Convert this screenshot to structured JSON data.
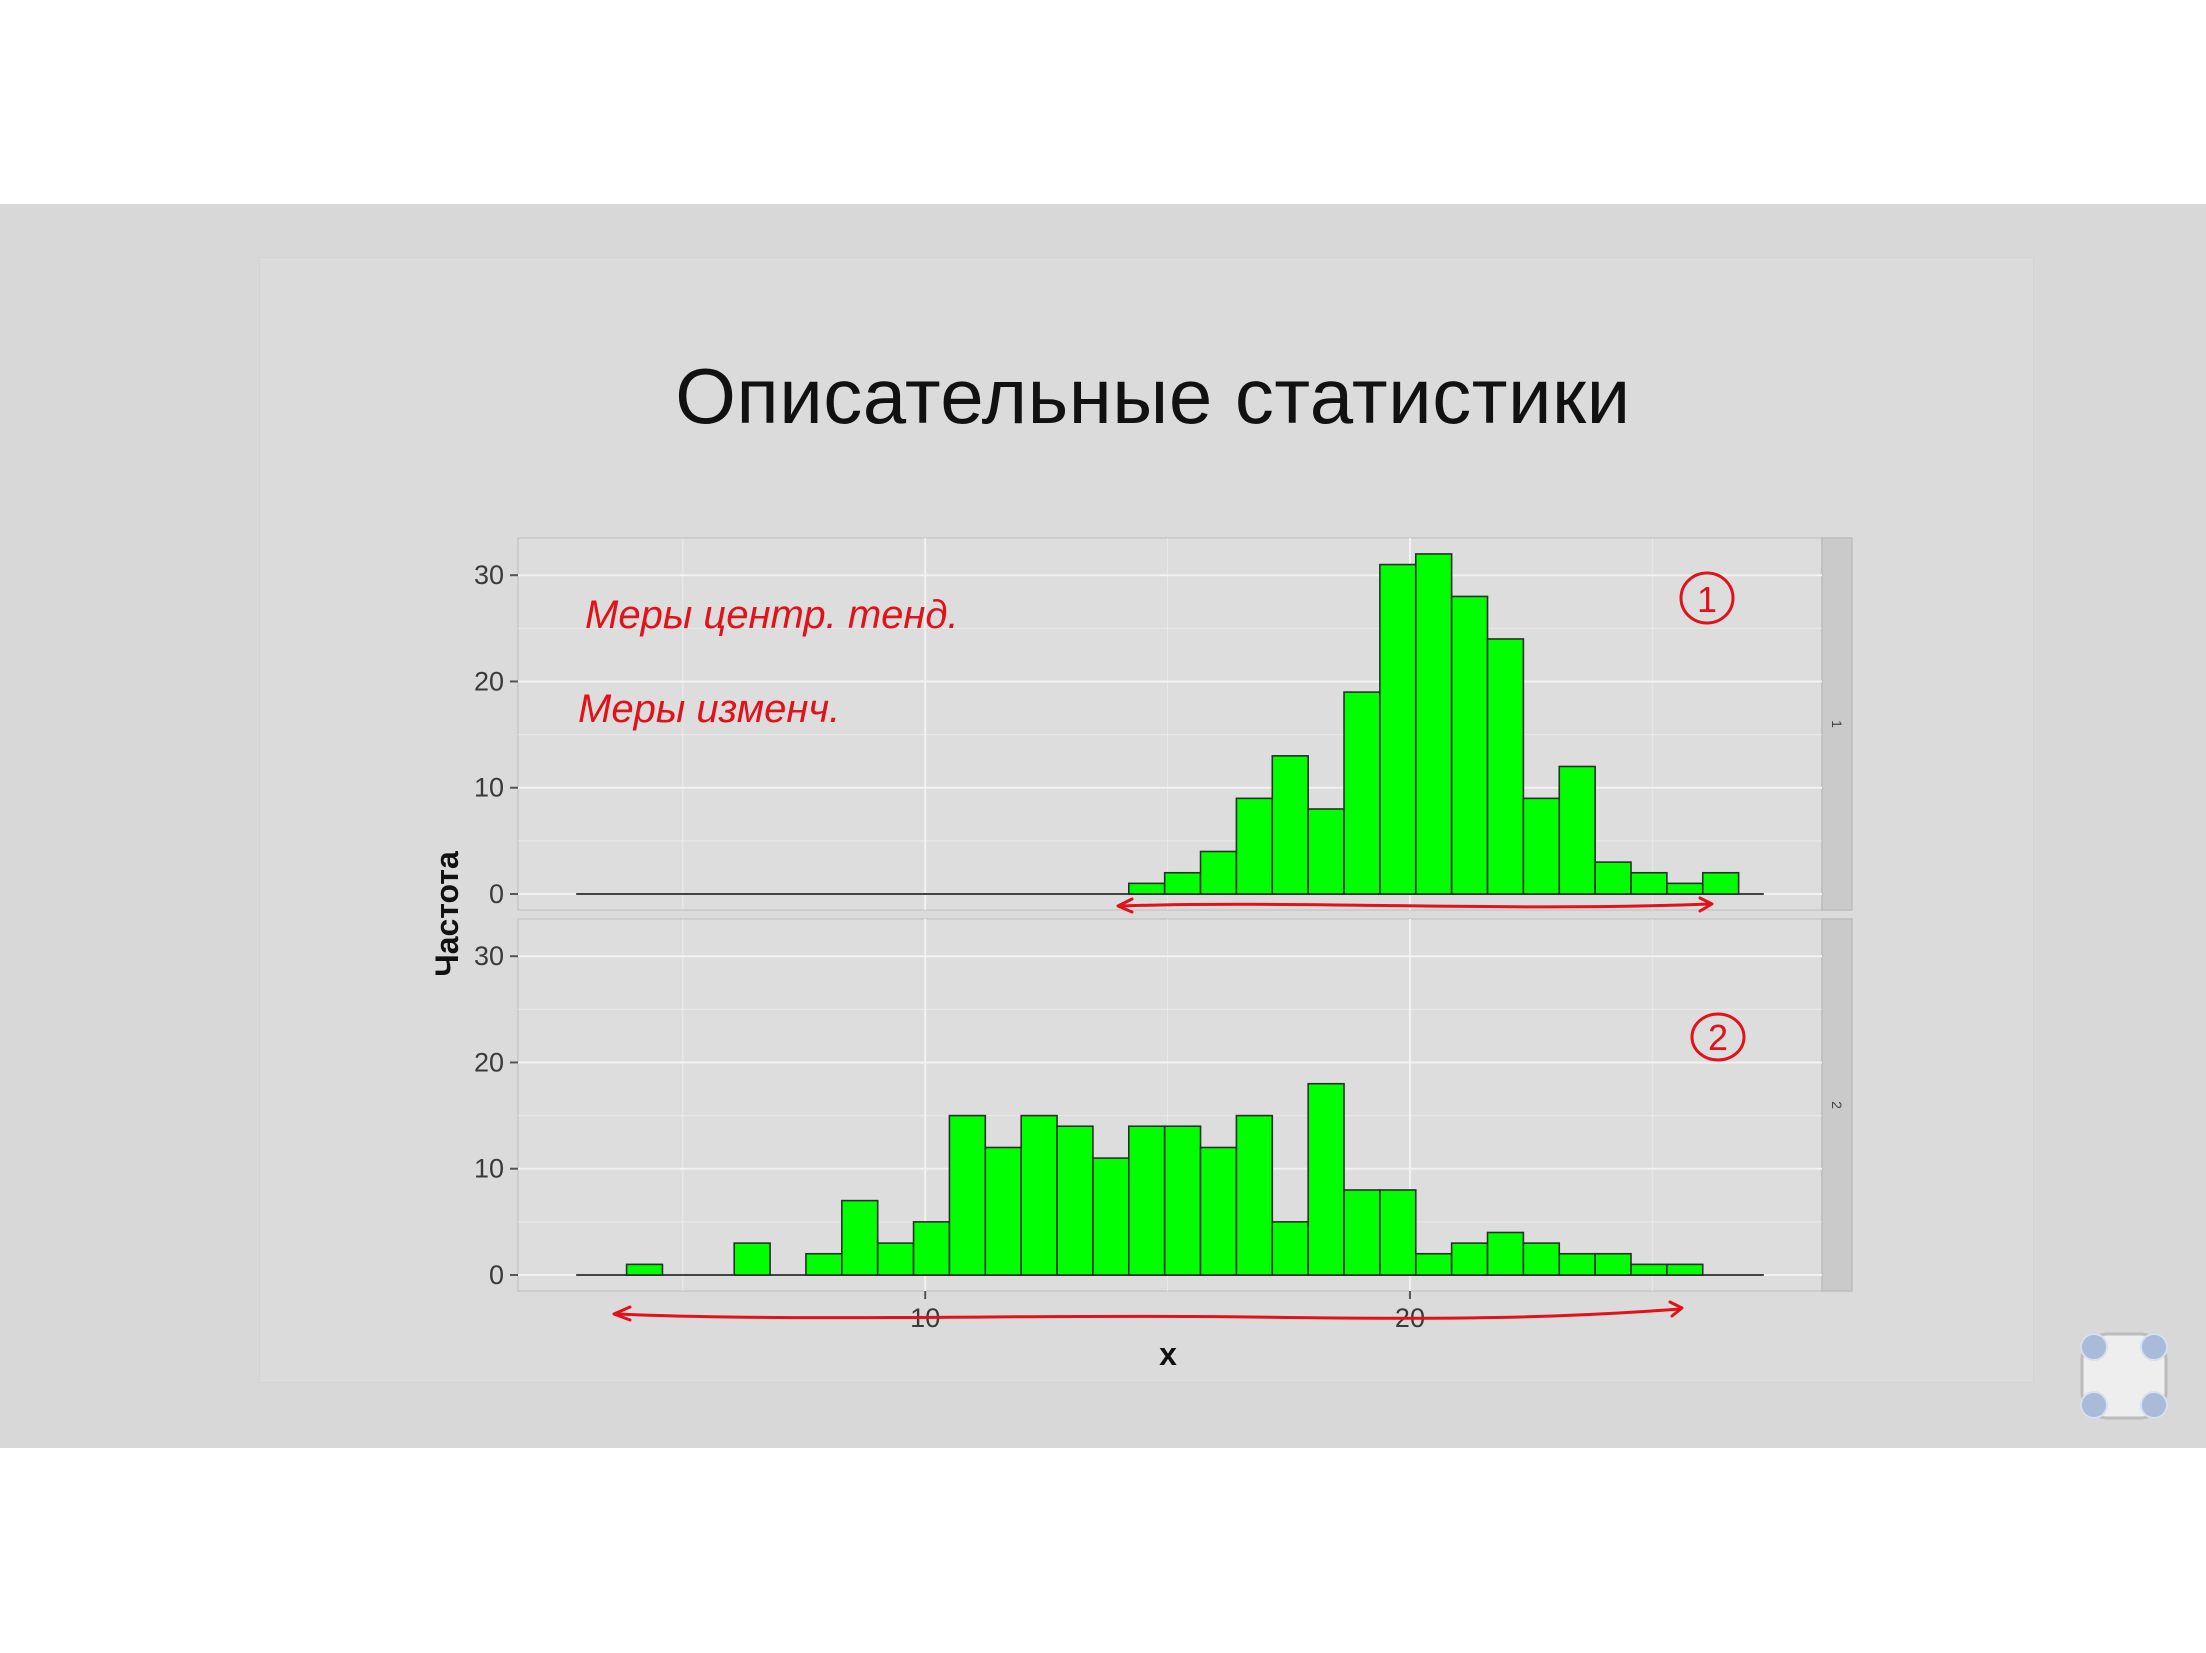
{
  "slide": {
    "title": "Описательные статистики",
    "annotations": {
      "line1": "Меры центр. тенд.",
      "line2": "Меры изменч.",
      "marker_panel1": "1",
      "marker_panel2": "2"
    }
  },
  "colors": {
    "bar_fill": "#00ff00",
    "bar_stroke": "#2d2d2d",
    "panel_bg": "#dedddd",
    "grid": "#f2f2f2",
    "ink": "#e0121a",
    "slide_bg": "#d9d8d8"
  },
  "chart_data": {
    "type": "bar",
    "subtype": "faceted-histogram",
    "title": "",
    "xlabel": "x",
    "ylabel": "Частота",
    "xlim": [
      1.6,
      28.5
    ],
    "ylim": [
      0,
      33.5
    ],
    "x_ticks": [
      10,
      20
    ],
    "y_ticks": [
      0,
      10,
      20,
      30
    ],
    "bin_width": 0.74,
    "grid": true,
    "legend": "none",
    "facets": [
      {
        "strip_label": "1",
        "bins": [
          {
            "x": 14.2,
            "count": 1
          },
          {
            "x": 14.94,
            "count": 2
          },
          {
            "x": 15.68,
            "count": 4
          },
          {
            "x": 16.42,
            "count": 9
          },
          {
            "x": 17.16,
            "count": 13
          },
          {
            "x": 17.9,
            "count": 8
          },
          {
            "x": 18.64,
            "count": 19
          },
          {
            "x": 19.38,
            "count": 31
          },
          {
            "x": 20.12,
            "count": 32
          },
          {
            "x": 20.86,
            "count": 28
          },
          {
            "x": 21.6,
            "count": 24
          },
          {
            "x": 22.34,
            "count": 9
          },
          {
            "x": 23.08,
            "count": 12
          },
          {
            "x": 23.82,
            "count": 3
          },
          {
            "x": 24.56,
            "count": 2
          },
          {
            "x": 25.3,
            "count": 1
          },
          {
            "x": 26.04,
            "count": 2
          }
        ]
      },
      {
        "strip_label": "2",
        "bins": [
          {
            "x": 3.84,
            "count": 1
          },
          {
            "x": 4.58,
            "count": 0
          },
          {
            "x": 5.32,
            "count": 0
          },
          {
            "x": 6.06,
            "count": 3
          },
          {
            "x": 6.8,
            "count": 0
          },
          {
            "x": 7.54,
            "count": 2
          },
          {
            "x": 8.28,
            "count": 7
          },
          {
            "x": 9.02,
            "count": 3
          },
          {
            "x": 9.76,
            "count": 5
          },
          {
            "x": 10.5,
            "count": 15
          },
          {
            "x": 11.24,
            "count": 12
          },
          {
            "x": 11.98,
            "count": 15
          },
          {
            "x": 12.72,
            "count": 14
          },
          {
            "x": 13.46,
            "count": 11
          },
          {
            "x": 14.2,
            "count": 14
          },
          {
            "x": 14.94,
            "count": 14
          },
          {
            "x": 15.68,
            "count": 12
          },
          {
            "x": 16.42,
            "count": 15
          },
          {
            "x": 17.16,
            "count": 5
          },
          {
            "x": 17.9,
            "count": 18
          },
          {
            "x": 18.64,
            "count": 8
          },
          {
            "x": 19.38,
            "count": 8
          },
          {
            "x": 20.12,
            "count": 2
          },
          {
            "x": 20.86,
            "count": 3
          },
          {
            "x": 21.6,
            "count": 4
          },
          {
            "x": 22.34,
            "count": 3
          },
          {
            "x": 23.08,
            "count": 2
          },
          {
            "x": 23.82,
            "count": 2
          },
          {
            "x": 24.56,
            "count": 1
          },
          {
            "x": 25.3,
            "count": 1
          }
        ]
      }
    ]
  }
}
